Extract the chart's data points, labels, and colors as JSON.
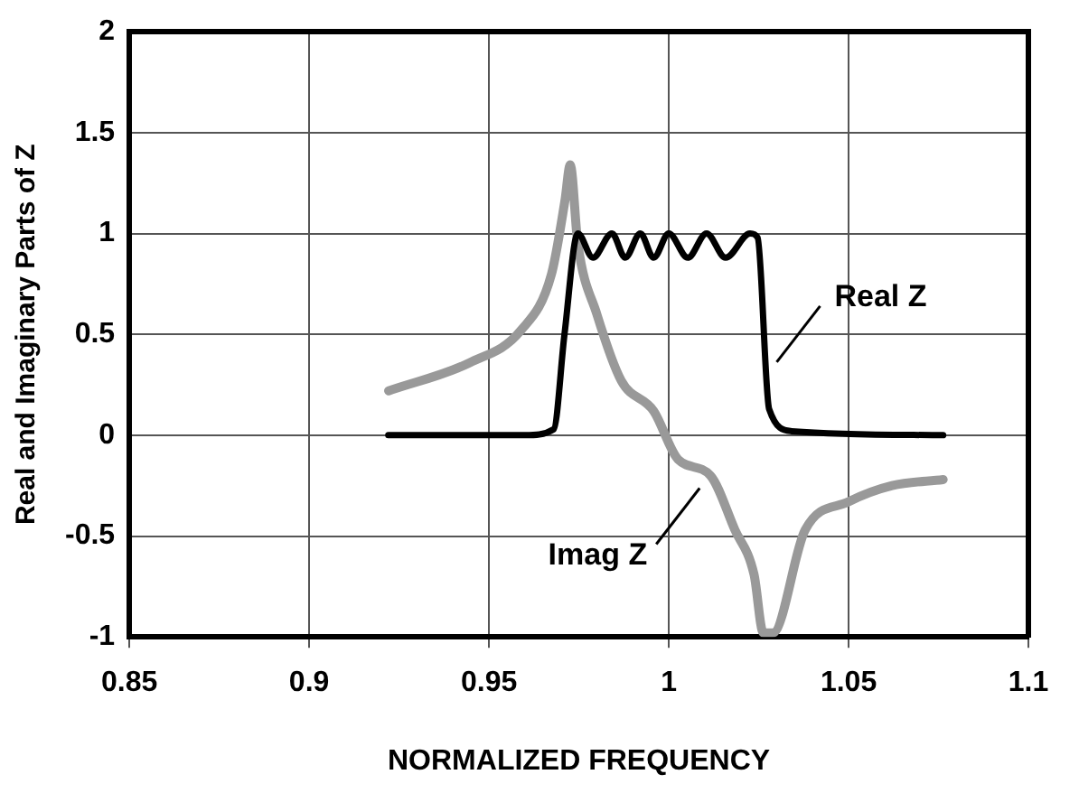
{
  "chart_data": {
    "type": "line",
    "xlabel": "NORMALIZED FREQUENCY",
    "ylabel": "Real and Imaginary Parts of Z",
    "xlim": [
      0.85,
      1.1
    ],
    "xticks": [
      0.85,
      0.9,
      0.95,
      1,
      1.05,
      1.1
    ],
    "ylim": [
      -1,
      2
    ],
    "yticks": [
      -1,
      -0.5,
      0,
      0.5,
      1,
      1.5,
      2
    ],
    "grid": true,
    "legend": false,
    "marker": "none",
    "line_style": "solid",
    "series": [
      {
        "color": "#000000",
        "x": [
          0.922,
          0.96,
          0.968,
          0.971,
          0.9747,
          0.9789,
          0.9842,
          0.9879,
          0.9921,
          0.9958,
          1.0,
          1.0053,
          1.0105,
          1.0158,
          1.0226,
          1.0247,
          1.0279,
          1.0342,
          1.0763
        ],
        "values": [
          0,
          0,
          0.03,
          0.5,
          1.0,
          0.88,
          1.0,
          0.88,
          1.0,
          0.88,
          1.0,
          0.88,
          1.0,
          0.88,
          1.0,
          0.98,
          0.13,
          0.02,
          0
        ]
      },
      {
        "color": "#999999",
        "x": [
          0.9221,
          0.9447,
          0.9589,
          0.9674,
          0.9711,
          0.9726,
          0.9747,
          0.98,
          0.9868,
          0.9958,
          1.0026,
          1.0116,
          1.0184,
          1.0237,
          1.0263,
          1.0289,
          1.0379,
          1.05,
          1.0621,
          1.0763
        ],
        "values": [
          0.22,
          0.36,
          0.52,
          0.8,
          1.16,
          1.34,
          0.95,
          0.6,
          0.27,
          0.12,
          -0.12,
          -0.2,
          -0.47,
          -0.69,
          -0.98,
          -0.98,
          -0.47,
          -0.33,
          -0.25,
          -0.22
        ]
      }
    ],
    "annotations": [
      {
        "text": "Real Z",
        "x": 1.027,
        "y": 0.3
      },
      {
        "text": "Imag Z",
        "x": 1.0116,
        "y": -0.2
      }
    ]
  }
}
